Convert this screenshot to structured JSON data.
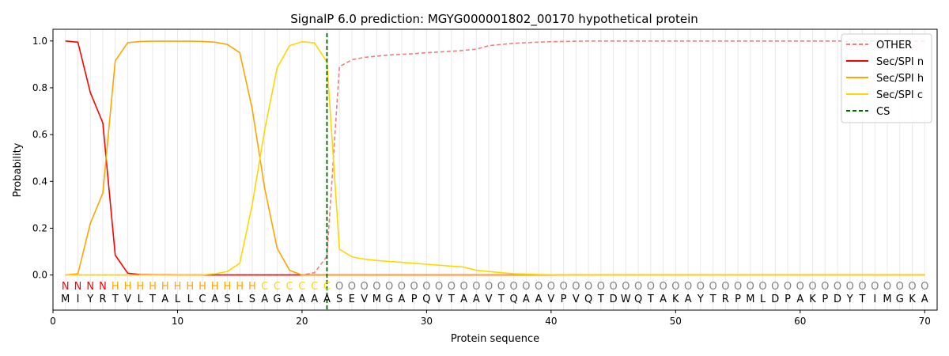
{
  "chart_data": {
    "type": "line",
    "title": "SignalP 6.0 prediction: MGYG000001802_00170 hypothetical protein",
    "xlabel": "Protein sequence",
    "ylabel": "Probability",
    "xlim": [
      0,
      71
    ],
    "ylim": [
      -0.15,
      1.05
    ],
    "xticks": [
      0,
      10,
      20,
      30,
      40,
      50,
      60,
      70
    ],
    "yticks": [
      0.0,
      0.2,
      0.4,
      0.6,
      0.8,
      1.0
    ],
    "grid": "vertical lines at each residue",
    "legend_position": "top-right",
    "sequence": [
      "M",
      "I",
      "Y",
      "R",
      "T",
      "V",
      "L",
      "T",
      "A",
      "L",
      "L",
      "C",
      "A",
      "S",
      "L",
      "S",
      "A",
      "G",
      "A",
      "A",
      "A",
      "A",
      "S",
      "E",
      "V",
      "M",
      "G",
      "A",
      "P",
      "Q",
      "V",
      "T",
      "A",
      "A",
      "V",
      "T",
      "Q",
      "A",
      "A",
      "V",
      "P",
      "V",
      "Q",
      "T",
      "D",
      "W",
      "Q",
      "T",
      "A",
      "K",
      "A",
      "Y",
      "T",
      "R",
      "P",
      "M",
      "L",
      "D",
      "P",
      "A",
      "K",
      "P",
      "D",
      "Y",
      "T",
      "I",
      "M",
      "G",
      "K",
      "A"
    ],
    "region_labels": [
      "N",
      "N",
      "N",
      "N",
      "H",
      "H",
      "H",
      "H",
      "H",
      "H",
      "H",
      "H",
      "H",
      "H",
      "H",
      "H",
      "C",
      "C",
      "C",
      "C",
      "C",
      "C",
      "O",
      "O",
      "O",
      "O",
      "O",
      "O",
      "O",
      "O",
      "O",
      "O",
      "O",
      "O",
      "O",
      "O",
      "O",
      "O",
      "O",
      "O",
      "O",
      "O",
      "O",
      "O",
      "O",
      "O",
      "O",
      "O",
      "O",
      "O",
      "O",
      "O",
      "O",
      "O",
      "O",
      "O",
      "O",
      "O",
      "O",
      "O",
      "O",
      "O",
      "O",
      "O",
      "O",
      "O",
      "O",
      "O",
      "O",
      "O"
    ],
    "region_colors": {
      "N": "#ff0000",
      "H": "#ffa500",
      "C": "#ffd700",
      "O": "#808080"
    },
    "series": [
      {
        "name": "OTHER",
        "color": "#f08080",
        "dash": "dashed",
        "values": [
          0,
          0,
          0,
          0,
          0,
          0,
          0,
          0,
          0,
          0,
          0,
          0,
          0,
          0,
          0,
          0,
          0,
          0,
          0,
          0,
          0.01,
          0.08,
          0.89,
          0.92,
          0.93,
          0.935,
          0.94,
          0.943,
          0.946,
          0.95,
          0.953,
          0.956,
          0.96,
          0.965,
          0.98,
          0.985,
          0.99,
          0.993,
          0.995,
          0.997,
          0.998,
          0.999,
          1,
          1,
          1,
          1,
          1,
          1,
          1,
          1,
          1,
          1,
          1,
          1,
          1,
          1,
          1,
          1,
          1,
          1,
          1,
          1,
          1,
          1,
          1,
          1,
          1,
          1,
          1,
          1
        ]
      },
      {
        "name": "Sec/SPI n",
        "color": "#ff0000",
        "dash": "solid",
        "values": [
          1.0,
          0.995,
          0.78,
          0.65,
          0.085,
          0.008,
          0.002,
          0.001,
          0.001,
          0,
          0,
          0,
          0,
          0,
          0,
          0,
          0,
          0,
          0,
          0,
          0,
          0,
          0,
          0,
          0,
          0,
          0,
          0,
          0,
          0,
          0,
          0,
          0,
          0,
          0,
          0,
          0,
          0,
          0,
          0,
          0,
          0,
          0,
          0,
          0,
          0,
          0,
          0,
          0,
          0,
          0,
          0,
          0,
          0,
          0,
          0,
          0,
          0,
          0,
          0,
          0,
          0,
          0,
          0,
          0,
          0,
          0,
          0,
          0,
          0
        ]
      },
      {
        "name": "Sec/SPI h",
        "color": "#ffa500",
        "dash": "solid",
        "values": [
          0,
          0.005,
          0.22,
          0.35,
          0.915,
          0.993,
          0.998,
          0.999,
          0.999,
          0.999,
          0.999,
          0.998,
          0.995,
          0.985,
          0.95,
          0.71,
          0.37,
          0.115,
          0.02,
          0,
          0,
          0,
          0,
          0,
          0,
          0,
          0,
          0,
          0,
          0,
          0,
          0,
          0,
          0,
          0,
          0,
          0,
          0,
          0,
          0,
          0,
          0,
          0,
          0,
          0,
          0,
          0,
          0,
          0,
          0,
          0,
          0,
          0,
          0,
          0,
          0,
          0,
          0,
          0,
          0,
          0,
          0,
          0,
          0,
          0,
          0,
          0,
          0,
          0,
          0
        ]
      },
      {
        "name": "Sec/SPI c",
        "color": "#ffd700",
        "dash": "solid",
        "values": [
          0,
          0,
          0,
          0,
          0,
          0,
          0,
          0,
          0,
          0,
          0,
          0,
          0.005,
          0.015,
          0.05,
          0.3,
          0.62,
          0.885,
          0.98,
          0.997,
          0.992,
          0.91,
          0.11,
          0.078,
          0.068,
          0.062,
          0.058,
          0.054,
          0.05,
          0.046,
          0.042,
          0.038,
          0.034,
          0.02,
          0.015,
          0.01,
          0.006,
          0.004,
          0.002,
          0.001,
          0,
          0,
          0,
          0,
          0,
          0,
          0,
          0,
          0,
          0,
          0,
          0,
          0,
          0,
          0,
          0,
          0,
          0,
          0,
          0,
          0,
          0,
          0,
          0,
          0,
          0,
          0,
          0,
          0,
          0
        ]
      },
      {
        "name": "CS",
        "color": "#006400",
        "dash": "dashed",
        "cs_x": 22,
        "values": []
      }
    ]
  }
}
